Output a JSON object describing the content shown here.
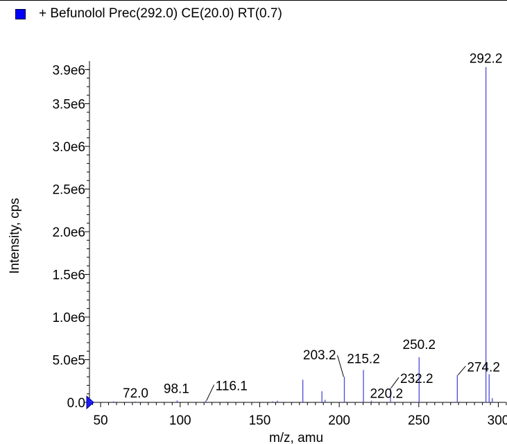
{
  "legend": {
    "label": "+ Befunolol Prec(292.0) CE(20.0) RT(0.7)",
    "color": "#0000ff"
  },
  "chart_data": {
    "type": "bar",
    "title": "",
    "xlabel": "m/z, amu",
    "ylabel": "Intensity, cps",
    "xlim": [
      43,
      305
    ],
    "ylim": [
      0,
      4000000
    ],
    "x_ticks": [
      "50",
      "100",
      "150",
      "200",
      "250",
      "300"
    ],
    "y_ticks": [
      "0.0",
      "5.0e5",
      "1.0e6",
      "1.5e6",
      "2.0e6",
      "2.5e6",
      "3.0e6",
      "3.5e6",
      "3.9e6"
    ],
    "series_color": "#4a4ad8",
    "peaks": [
      {
        "mz": 44.0,
        "intensity": 15000
      },
      {
        "mz": 58.1,
        "intensity": 12000
      },
      {
        "mz": 72.0,
        "intensity": 10000
      },
      {
        "mz": 98.1,
        "intensity": 22000
      },
      {
        "mz": 116.1,
        "intensity": 20000
      },
      {
        "mz": 158.1,
        "intensity": 12000
      },
      {
        "mz": 161.1,
        "intensity": 20000
      },
      {
        "mz": 177.1,
        "intensity": 265000
      },
      {
        "mz": 189.1,
        "intensity": 130000
      },
      {
        "mz": 191.1,
        "intensity": 30000
      },
      {
        "mz": 203.2,
        "intensity": 300000
      },
      {
        "mz": 215.2,
        "intensity": 380000
      },
      {
        "mz": 220.2,
        "intensity": 20000
      },
      {
        "mz": 232.2,
        "intensity": 170000
      },
      {
        "mz": 250.2,
        "intensity": 530000
      },
      {
        "mz": 274.2,
        "intensity": 320000
      },
      {
        "mz": 292.2,
        "intensity": 3930000
      },
      {
        "mz": 294.2,
        "intensity": 330000
      },
      {
        "mz": 296.2,
        "intensity": 50000
      }
    ],
    "peak_labels": [
      "72.0",
      "98.1",
      "116.1",
      "203.2",
      "215.2",
      "220.2",
      "232.2",
      "250.2",
      "274.2",
      "292.2"
    ],
    "grid": false,
    "legend_position": "top-left"
  }
}
